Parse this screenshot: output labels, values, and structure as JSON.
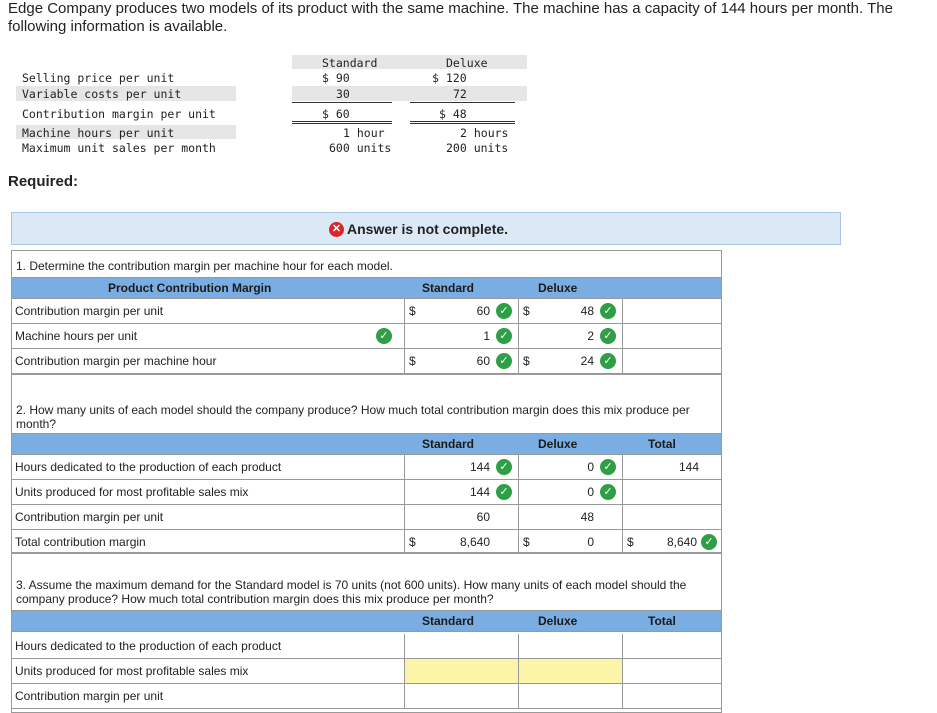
{
  "intro": "Edge Company produces two models of its product with the same machine. The machine has a capacity of 144 hours per month. The following information is available.",
  "info_table": {
    "col_standard": "Standard",
    "col_deluxe": "Deluxe",
    "rows": [
      {
        "label": "Selling price per unit",
        "standard": "$ 90",
        "deluxe": "$ 120"
      },
      {
        "label": "Variable costs per unit",
        "standard": "30",
        "deluxe": "72"
      },
      {
        "label": "Contribution margin per unit",
        "standard": "$ 60",
        "deluxe": "$ 48"
      },
      {
        "label": "Machine hours per unit",
        "standard": "1 hour",
        "deluxe": "2 hours"
      },
      {
        "label": "Maximum unit sales per month",
        "standard": "600 units",
        "deluxe": "200 units"
      }
    ]
  },
  "required": "Required:",
  "banner": {
    "icon": "x-circle-icon",
    "message": "Answer is not complete."
  },
  "part1": {
    "question": "1. Determine the contribution margin per machine hour for each model.",
    "header": {
      "label": "Product Contribution Margin",
      "standard": "Standard",
      "deluxe": "Deluxe"
    },
    "rows": [
      {
        "label": "Contribution margin per unit",
        "std_dollar": "$",
        "standard": "60",
        "del_dollar": "$",
        "deluxe": "48"
      },
      {
        "label": "Machine hours per unit",
        "std_dollar": "",
        "standard": "1",
        "del_dollar": "",
        "deluxe": "2"
      },
      {
        "label": "Contribution margin per machine hour",
        "std_dollar": "$",
        "standard": "60",
        "del_dollar": "$",
        "deluxe": "24"
      }
    ]
  },
  "part2": {
    "question": "2. How many units of each model should the company produce? How much total contribution margin does this mix produce per month?",
    "header": {
      "standard": "Standard",
      "deluxe": "Deluxe",
      "total": "Total"
    },
    "rows": [
      {
        "label": "Hours dedicated to the production of each product",
        "standard": "144",
        "deluxe": "0",
        "total": "144"
      },
      {
        "label": "Units produced for most profitable sales mix",
        "standard": "144",
        "deluxe": "0",
        "total": ""
      },
      {
        "label": "Contribution margin per unit",
        "standard": "60",
        "deluxe": "48",
        "total": ""
      },
      {
        "label": "Total contribution margin",
        "std_dollar": "$",
        "standard": "8,640",
        "del_dollar": "$",
        "deluxe": "0",
        "tot_dollar": "$",
        "total": "8,640"
      }
    ]
  },
  "part3": {
    "question": "3. Assume the maximum demand for the Standard model is 70 units (not 600 units). How many units of each model should the company produce? How much total contribution margin does this mix produce per month?",
    "header": {
      "standard": "Standard",
      "deluxe": "Deluxe",
      "total": "Total"
    },
    "rows": [
      {
        "label": "Hours dedicated to the production of each product"
      },
      {
        "label": "Units produced for most profitable sales mix"
      },
      {
        "label": "Contribution margin per unit"
      }
    ]
  },
  "colors": {
    "header_bg": "#7aaee3",
    "banner_bg": "#dbe8f6",
    "check": "#2e9e47",
    "error": "#d9262b",
    "input_yellow": "#fbf6a7"
  }
}
